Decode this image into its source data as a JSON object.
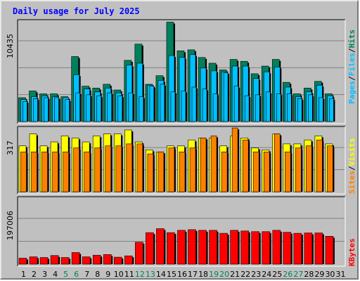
{
  "title": "Daily usage for July 2025",
  "colors": {
    "hits": "#00805c",
    "files": "#00c0ff",
    "pages": "#00c0ff",
    "visits": "#ffff00",
    "sites": "#ff8000",
    "kbytes": "#ff0000",
    "title": "#0000ff",
    "weekend_day": "#00805c",
    "weekday": "#000000",
    "panel_bg": "#c0c0c0",
    "grid": "#808080"
  },
  "chart_data": [
    {
      "type": "bar",
      "name": "hits-files-pages",
      "y_label_top": "10435",
      "ylim": [
        0,
        10435
      ],
      "legend": [
        "Pages",
        "Files",
        "Hits"
      ],
      "categories": [
        "1",
        "2",
        "3",
        "4",
        "5",
        "6",
        "7",
        "8",
        "9",
        "10",
        "11",
        "12",
        "13",
        "14",
        "15",
        "16",
        "17",
        "18",
        "19",
        "20",
        "21",
        "22",
        "23",
        "24",
        "25",
        "26",
        "27",
        "28",
        "29",
        "30",
        "31"
      ],
      "series": [
        {
          "name": "Hits",
          "values": [
            2500,
            3200,
            2900,
            2900,
            2600,
            6800,
            3700,
            3500,
            3900,
            3300,
            6400,
            8100,
            3900,
            4800,
            10400,
            7400,
            7500,
            6700,
            6100,
            5400,
            6500,
            6300,
            5000,
            5800,
            6500,
            4100,
            2900,
            3500,
            4200,
            2900,
            0
          ]
        },
        {
          "name": "Files",
          "values": [
            2300,
            2600,
            2700,
            2600,
            2500,
            4900,
            3400,
            3100,
            3500,
            3000,
            5900,
            6100,
            3800,
            4300,
            6900,
            6700,
            7000,
            5600,
            5300,
            5200,
            5800,
            5800,
            4500,
            5200,
            5700,
            3600,
            2600,
            3100,
            3800,
            2700,
            0
          ]
        },
        {
          "name": "Pages",
          "values": [
            2100,
            2400,
            2500,
            2500,
            2300,
            3000,
            2800,
            2700,
            3000,
            2700,
            3000,
            2600,
            3700,
            3900,
            3100,
            3200,
            3600,
            3400,
            2900,
            5100,
            3700,
            2700,
            2800,
            3100,
            2900,
            2900,
            2400,
            2800,
            2500,
            2400,
            0
          ]
        }
      ]
    },
    {
      "type": "bar",
      "name": "visits-sites",
      "y_label_top": "317",
      "ylim": [
        0,
        317
      ],
      "legend": [
        "Sites",
        "Visits"
      ],
      "categories": [
        "1",
        "2",
        "3",
        "4",
        "5",
        "6",
        "7",
        "8",
        "9",
        "10",
        "11",
        "12",
        "13",
        "14",
        "15",
        "16",
        "17",
        "18",
        "19",
        "20",
        "21",
        "22",
        "23",
        "24",
        "25",
        "26",
        "27",
        "28",
        "29",
        "30",
        "31"
      ],
      "series": [
        {
          "name": "Visits",
          "values": [
            230,
            290,
            230,
            250,
            280,
            270,
            250,
            280,
            290,
            290,
            310,
            250,
            210,
            200,
            230,
            230,
            260,
            270,
            270,
            230,
            280,
            270,
            220,
            210,
            290,
            240,
            240,
            260,
            280,
            240,
            0
          ]
        },
        {
          "name": "Sites",
          "values": [
            200,
            200,
            200,
            200,
            200,
            220,
            200,
            220,
            230,
            230,
            240,
            240,
            190,
            200,
            220,
            200,
            220,
            270,
            280,
            200,
            320,
            260,
            200,
            200,
            290,
            200,
            220,
            230,
            260,
            230,
            0
          ]
        }
      ]
    },
    {
      "type": "bar",
      "name": "kbytes",
      "y_label_top": "197006",
      "ylim": [
        0,
        197006
      ],
      "legend": [
        "KBytes"
      ],
      "categories": [
        "1",
        "2",
        "3",
        "4",
        "5",
        "6",
        "7",
        "8",
        "9",
        "10",
        "11",
        "12",
        "13",
        "14",
        "15",
        "16",
        "17",
        "18",
        "19",
        "20",
        "21",
        "22",
        "23",
        "24",
        "25",
        "26",
        "27",
        "28",
        "29",
        "30",
        "31"
      ],
      "series": [
        {
          "name": "KBytes",
          "values": [
            18000,
            22000,
            20000,
            26000,
            20000,
            35000,
            22000,
            27000,
            29000,
            21000,
            25000,
            66000,
            95000,
            107000,
            95000,
            102000,
            104000,
            102000,
            102000,
            93000,
            102000,
            100000,
            98000,
            98000,
            102000,
            96000,
            93000,
            94000,
            94000,
            84000,
            0
          ]
        }
      ]
    }
  ],
  "weekend_days": [
    "5",
    "6",
    "12",
    "13",
    "19",
    "20",
    "26",
    "27"
  ]
}
